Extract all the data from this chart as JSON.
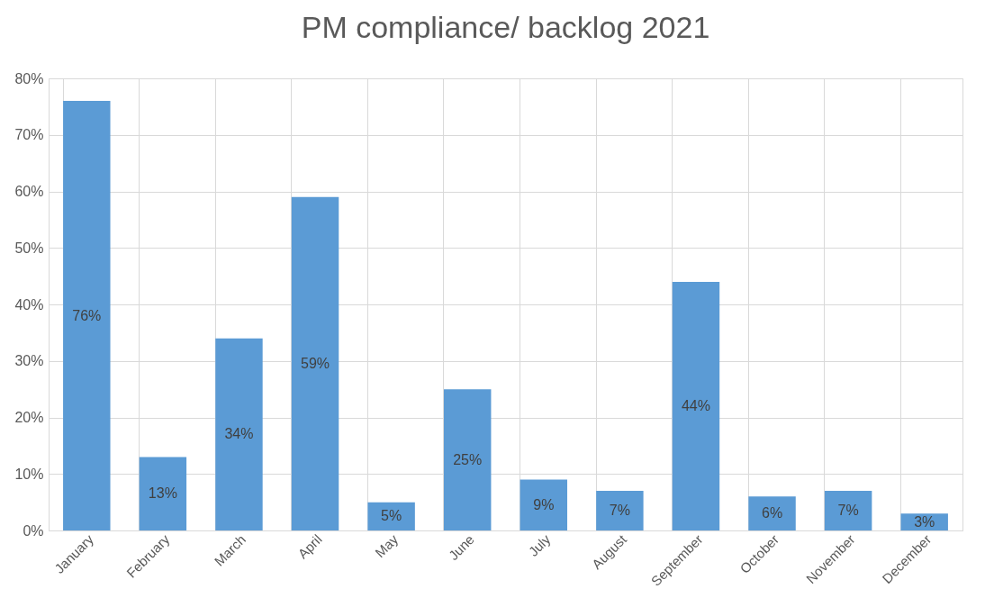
{
  "chart_data": {
    "type": "bar",
    "title": "PM compliance/ backlog 2021",
    "categories": [
      "January",
      "February",
      "March",
      "April",
      "May",
      "June",
      "July",
      "August",
      "September",
      "October",
      "November",
      "December"
    ],
    "values": [
      76,
      13,
      34,
      59,
      5,
      25,
      9,
      7,
      44,
      6,
      7,
      3
    ],
    "value_labels": [
      "76%",
      "13%",
      "34%",
      "59%",
      "5%",
      "25%",
      "9%",
      "7%",
      "44%",
      "6%",
      "7%",
      "3%"
    ],
    "color": "#5b9bd5",
    "ylim": [
      0,
      80
    ],
    "yticks": [
      {
        "value": 0,
        "label": "0%"
      },
      {
        "value": 10,
        "label": "10%"
      },
      {
        "value": 20,
        "label": "20%"
      },
      {
        "value": 30,
        "label": "30%"
      },
      {
        "value": 40,
        "label": "40%"
      },
      {
        "value": 50,
        "label": "50%"
      },
      {
        "value": 60,
        "label": "60%"
      },
      {
        "value": 70,
        "label": "70%"
      },
      {
        "value": 80,
        "label": "80%"
      }
    ],
    "grid": true
  }
}
